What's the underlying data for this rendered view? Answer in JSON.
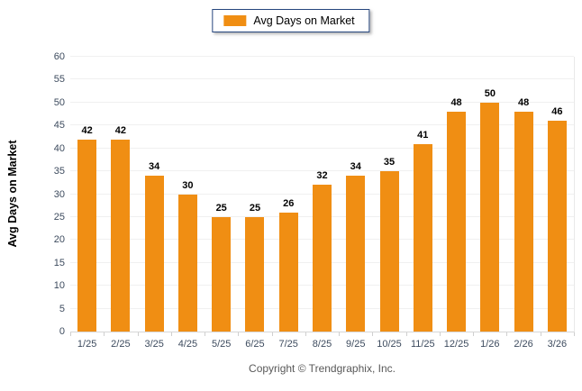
{
  "chart_data": {
    "type": "bar",
    "categories": [
      "1/25",
      "2/25",
      "3/25",
      "4/25",
      "5/25",
      "6/25",
      "7/25",
      "8/25",
      "9/25",
      "10/25",
      "11/25",
      "12/25",
      "1/26",
      "2/26",
      "3/26"
    ],
    "values": [
      42,
      42,
      34,
      30,
      25,
      25,
      26,
      32,
      34,
      35,
      41,
      48,
      50,
      48,
      46
    ],
    "title": "",
    "xlabel": "",
    "ylabel": "Avg Days on Market",
    "ylim": [
      0,
      60
    ],
    "ytick_step": 5,
    "grid": true,
    "legend": {
      "label": "Avg Days on Market",
      "position": "top-center"
    },
    "bar_color": "#F08E13"
  },
  "colors": {
    "accent_orange": "#F08E13",
    "legend_border": "#27477E",
    "gridline": "#F0F0F0",
    "axis_line": "#D6D6D6",
    "tick_label": "#3D4B5E",
    "value_label": "#000000",
    "footer_text": "#595959"
  },
  "footer": {
    "copyright": "Copyright © Trendgraphix, Inc."
  }
}
